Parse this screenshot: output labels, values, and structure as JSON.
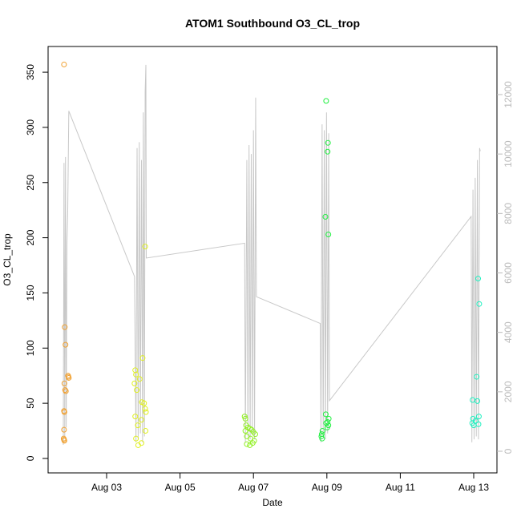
{
  "chart_data": {
    "type": "scatter",
    "title": "ATOM1 Southbound O3_CL_trop",
    "x_label": "Date",
    "y_label": "O3_CL_trop",
    "xlim": [
      1.406,
      13.633
    ],
    "xticks": [
      {
        "value": 3,
        "label": "Aug 03"
      },
      {
        "value": 5,
        "label": "Aug 05"
      },
      {
        "value": 7,
        "label": "Aug 07"
      },
      {
        "value": 9,
        "label": "Aug 09"
      },
      {
        "value": 11,
        "label": "Aug 11"
      },
      {
        "value": 13,
        "label": "Aug 13"
      }
    ],
    "ylim": [
      -13.1,
      373.3
    ],
    "yticks": [
      0,
      50,
      100,
      150,
      200,
      250,
      300,
      350
    ],
    "y2lim": [
      -728,
      13618
    ],
    "y2ticks": [
      0,
      2000,
      4000,
      6000,
      8000,
      10000,
      12000
    ],
    "series": [
      {
        "color": "#f0a030",
        "x": [
          1.84,
          1.86,
          1.88,
          1.95,
          1.96,
          1.97,
          1.85,
          1.87,
          1.89,
          1.84,
          1.85,
          1.84,
          1.83,
          1.84,
          1.85
        ],
        "values": [
          357,
          119,
          103,
          75,
          74,
          73,
          68,
          62,
          61,
          43,
          42,
          26,
          18,
          17,
          16
        ]
      },
      {
        "color": "#e0f020",
        "x": [
          4.05,
          3.98,
          3.78,
          3.8,
          3.9,
          3.76,
          3.82,
          3.96,
          4.02,
          4.05,
          4.07,
          3.78,
          3.95,
          3.85,
          4.06,
          3.8,
          3.95,
          3.86
        ],
        "values": [
          192,
          91,
          80,
          76,
          72,
          68,
          62,
          51,
          50,
          45,
          42,
          38,
          35,
          30,
          25,
          18,
          14,
          12
        ]
      },
      {
        "color": "#90f020",
        "x": [
          6.76,
          6.78,
          6.8,
          6.85,
          6.9,
          6.95,
          6.78,
          7.0,
          7.05,
          6.82,
          6.92,
          7.02,
          6.98,
          6.82,
          6.9
        ],
        "values": [
          38,
          36,
          30,
          28,
          27,
          26,
          25,
          24,
          22,
          20,
          18,
          16,
          14,
          13,
          12
        ]
      },
      {
        "color": "#20f040",
        "x": [
          8.98,
          9.03,
          9.02,
          8.96,
          9.04,
          8.97,
          9.05,
          9.02,
          8.98,
          9.04,
          9.01,
          8.88,
          8.86,
          8.85,
          8.87
        ],
        "values": [
          324,
          286,
          278,
          219,
          203,
          40,
          36,
          33,
          32,
          30,
          28,
          25,
          22,
          20,
          18
        ]
      },
      {
        "color": "#20f0c0",
        "x": [
          13.12,
          13.15,
          13.08,
          12.97,
          13.1,
          13.14,
          12.98,
          13.05,
          12.96,
          13.13,
          13.0
        ],
        "values": [
          163,
          140,
          74,
          53,
          52,
          38,
          36,
          34,
          32,
          31,
          30
        ]
      },
      {
        "color": "#c8c8c8",
        "axis": "y2",
        "kind": "line",
        "x": [
          1.82,
          1.84,
          1.86,
          1.88,
          1.9,
          1.92,
          1.94,
          1.97,
          3.76,
          3.8,
          3.83,
          3.86,
          3.89,
          3.92,
          3.95,
          3.98,
          4.0,
          4.03,
          4.05,
          4.07,
          4.08,
          6.76,
          6.78,
          6.82,
          6.85,
          6.88,
          6.91,
          6.94,
          6.97,
          7.0,
          7.03,
          7.06,
          7.08,
          8.82,
          8.84,
          8.87,
          8.9,
          8.93,
          8.96,
          8.99,
          9.02,
          9.05,
          9.07,
          12.93,
          12.95,
          12.98,
          13.01,
          13.04,
          13.07,
          13.1,
          13.13,
          13.16,
          13.18
        ],
        "values": [
          216,
          9700,
          500,
          9900,
          800,
          7000,
          8000,
          11450,
          5880,
          300,
          10200,
          400,
          10400,
          600,
          9800,
          300,
          11400,
          500,
          12100,
          13000,
          6500,
          7000,
          300,
          9800,
          500,
          10300,
          400,
          10000,
          600,
          10800,
          400,
          11900,
          5200,
          4300,
          300,
          11000,
          500,
          10800,
          400,
          11400,
          600,
          10700,
          1700,
          7900,
          300,
          8800,
          400,
          9200,
          500,
          9800,
          400,
          10200,
          10100
        ]
      }
    ]
  }
}
